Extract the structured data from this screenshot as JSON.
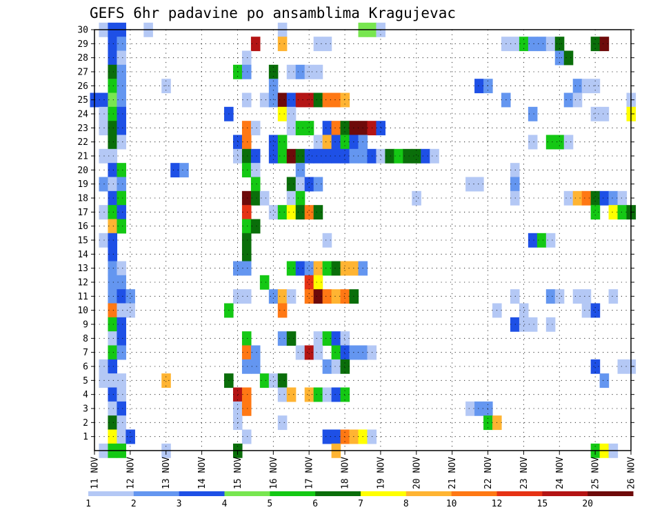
{
  "chart_data": {
    "type": "heatmap",
    "title": "GEFS 6hr padavine po ansamblima Kragujevac",
    "xlabel": "",
    "ylabel": "",
    "x_tick_labels": [
      "11 NOV",
      "12 NOV",
      "13 NOV",
      "14 NOV",
      "15 NOV",
      "16 NOV",
      "17 NOV",
      "18 NOV",
      "19 NOV",
      "20 NOV",
      "21 NOV",
      "22 NOV",
      "23 NOV",
      "24 NOV",
      "25 NOV",
      "26 NOV"
    ],
    "x_range_days": [
      11,
      26
    ],
    "y_tick_labels": [
      "1",
      "2",
      "3",
      "4",
      "5",
      "6",
      "7",
      "8",
      "9",
      "10",
      "11",
      "12",
      "13",
      "14",
      "15",
      "16",
      "17",
      "18",
      "19",
      "20",
      "21",
      "22",
      "23",
      "24",
      "25",
      "26",
      "27",
      "28",
      "29",
      "30"
    ],
    "y_range": [
      0,
      30
    ],
    "grid": true,
    "legend_position": "bottom",
    "legend": {
      "levels": [
        "1",
        "2",
        "3",
        "4",
        "5",
        "6",
        "7",
        "8",
        "10",
        "12",
        "15",
        "20"
      ],
      "colors": [
        "#b4c8f5",
        "#6496f0",
        "#1e50e6",
        "#78e650",
        "#14c814",
        "#0a6e0a",
        "#ffff00",
        "#ffb432",
        "#ff7814",
        "#e63214",
        "#b41414",
        "#6e0a0a"
      ]
    },
    "cells": [
      [
        11.25,
        30,
        1
      ],
      [
        11.5,
        30,
        3
      ],
      [
        11.75,
        30,
        3
      ],
      [
        12.5,
        30,
        1
      ],
      [
        16.25,
        30,
        1
      ],
      [
        18.5,
        30,
        4
      ],
      [
        18.75,
        30,
        4
      ],
      [
        19,
        30,
        1
      ],
      [
        11.5,
        29,
        3
      ],
      [
        11.75,
        29,
        2
      ],
      [
        15.5,
        29,
        15
      ],
      [
        16.25,
        29,
        8
      ],
      [
        17.25,
        29,
        1
      ],
      [
        17.5,
        29,
        1
      ],
      [
        22.5,
        29,
        1
      ],
      [
        22.75,
        29,
        1
      ],
      [
        23,
        29,
        5
      ],
      [
        23.25,
        29,
        2
      ],
      [
        23.5,
        29,
        2
      ],
      [
        23.75,
        29,
        1
      ],
      [
        24,
        29,
        6
      ],
      [
        25,
        29,
        6
      ],
      [
        25.25,
        29,
        20
      ],
      [
        11.5,
        28,
        3
      ],
      [
        11.75,
        28,
        1
      ],
      [
        15.25,
        28,
        1
      ],
      [
        24,
        28,
        2
      ],
      [
        24.25,
        28,
        6
      ],
      [
        11.5,
        27,
        6
      ],
      [
        11.75,
        27,
        2
      ],
      [
        15,
        27,
        5
      ],
      [
        15.25,
        27,
        2
      ],
      [
        16,
        27,
        6
      ],
      [
        16.5,
        27,
        1
      ],
      [
        16.75,
        27,
        2
      ],
      [
        17,
        27,
        1
      ],
      [
        17.25,
        27,
        1
      ],
      [
        11.5,
        26,
        5
      ],
      [
        11.75,
        26,
        2
      ],
      [
        13,
        26,
        1
      ],
      [
        16,
        26,
        2
      ],
      [
        21.75,
        26,
        3
      ],
      [
        22,
        26,
        2
      ],
      [
        24.5,
        26,
        2
      ],
      [
        24.75,
        26,
        1
      ],
      [
        25,
        26,
        1
      ],
      [
        11,
        25,
        3
      ],
      [
        11.25,
        25,
        3
      ],
      [
        11.5,
        25,
        4
      ],
      [
        11.75,
        25,
        2
      ],
      [
        15.25,
        25,
        1
      ],
      [
        15.75,
        25,
        1
      ],
      [
        16,
        25,
        2
      ],
      [
        16.25,
        25,
        20
      ],
      [
        16.5,
        25,
        3
      ],
      [
        16.75,
        25,
        15
      ],
      [
        17,
        25,
        15
      ],
      [
        17.25,
        25,
        6
      ],
      [
        17.5,
        25,
        10
      ],
      [
        17.75,
        25,
        10
      ],
      [
        18,
        25,
        8
      ],
      [
        22.5,
        25,
        2
      ],
      [
        24.25,
        25,
        2
      ],
      [
        24.5,
        25,
        1
      ],
      [
        26,
        25,
        1
      ],
      [
        11.25,
        24,
        1
      ],
      [
        11.5,
        24,
        5
      ],
      [
        11.75,
        24,
        3
      ],
      [
        14.75,
        24,
        3
      ],
      [
        16.25,
        24,
        7
      ],
      [
        16.5,
        24,
        1
      ],
      [
        23.25,
        24,
        2
      ],
      [
        25,
        24,
        1
      ],
      [
        25.25,
        24,
        1
      ],
      [
        26,
        24,
        7
      ],
      [
        11.25,
        23,
        1
      ],
      [
        11.5,
        23,
        6
      ],
      [
        11.75,
        23,
        3
      ],
      [
        15.25,
        23,
        10
      ],
      [
        15.5,
        23,
        1
      ],
      [
        16.5,
        23,
        1
      ],
      [
        16.75,
        23,
        5
      ],
      [
        17,
        23,
        5
      ],
      [
        17.5,
        23,
        3
      ],
      [
        17.75,
        23,
        10
      ],
      [
        18,
        23,
        6
      ],
      [
        18.25,
        23,
        20
      ],
      [
        18.5,
        23,
        20
      ],
      [
        18.75,
        23,
        15
      ],
      [
        19,
        23,
        3
      ],
      [
        11.5,
        22,
        6
      ],
      [
        11.75,
        22,
        1
      ],
      [
        15,
        22,
        3
      ],
      [
        15.25,
        22,
        10
      ],
      [
        16,
        22,
        3
      ],
      [
        16.25,
        22,
        5
      ],
      [
        17.25,
        22,
        1
      ],
      [
        17.5,
        22,
        8
      ],
      [
        17.75,
        22,
        3
      ],
      [
        18,
        22,
        5
      ],
      [
        18.25,
        22,
        3
      ],
      [
        18.5,
        22,
        2
      ],
      [
        23.25,
        22,
        1
      ],
      [
        23.75,
        22,
        5
      ],
      [
        24,
        22,
        5
      ],
      [
        24.25,
        22,
        1
      ],
      [
        11.25,
        21,
        1
      ],
      [
        11.5,
        21,
        1
      ],
      [
        15,
        21,
        1
      ],
      [
        15.25,
        21,
        6
      ],
      [
        15.5,
        21,
        3
      ],
      [
        16,
        21,
        3
      ],
      [
        16.25,
        21,
        5
      ],
      [
        16.5,
        21,
        20
      ],
      [
        16.75,
        21,
        6
      ],
      [
        17,
        21,
        3
      ],
      [
        17.25,
        21,
        3
      ],
      [
        17.5,
        21,
        3
      ],
      [
        17.75,
        21,
        3
      ],
      [
        18,
        21,
        3
      ],
      [
        18.25,
        21,
        2
      ],
      [
        18.5,
        21,
        2
      ],
      [
        18.75,
        21,
        3
      ],
      [
        19,
        21,
        1
      ],
      [
        19.25,
        21,
        6
      ],
      [
        19.5,
        21,
        5
      ],
      [
        19.75,
        21,
        6
      ],
      [
        20,
        21,
        6
      ],
      [
        20.25,
        21,
        3
      ],
      [
        20.5,
        21,
        1
      ],
      [
        11.5,
        20,
        3
      ],
      [
        11.75,
        20,
        5
      ],
      [
        13.25,
        20,
        3
      ],
      [
        13.5,
        20,
        2
      ],
      [
        15.25,
        20,
        5
      ],
      [
        15.5,
        20,
        1
      ],
      [
        16.75,
        20,
        2
      ],
      [
        22.75,
        20,
        1
      ],
      [
        11.25,
        19,
        2
      ],
      [
        11.5,
        19,
        1
      ],
      [
        11.75,
        19,
        2
      ],
      [
        15.5,
        19,
        5
      ],
      [
        16.5,
        19,
        6
      ],
      [
        16.75,
        19,
        1
      ],
      [
        17,
        19,
        3
      ],
      [
        17.25,
        19,
        2
      ],
      [
        21.5,
        19,
        1
      ],
      [
        21.75,
        19,
        1
      ],
      [
        22.75,
        19,
        2
      ],
      [
        11.5,
        18,
        3
      ],
      [
        11.75,
        18,
        5
      ],
      [
        15.25,
        18,
        20
      ],
      [
        15.5,
        18,
        6
      ],
      [
        15.75,
        18,
        1
      ],
      [
        16.5,
        18,
        1
      ],
      [
        16.75,
        18,
        5
      ],
      [
        20,
        18,
        1
      ],
      [
        22.75,
        18,
        1
      ],
      [
        24.25,
        18,
        1
      ],
      [
        24.5,
        18,
        8
      ],
      [
        24.75,
        18,
        10
      ],
      [
        25,
        18,
        6
      ],
      [
        25.25,
        18,
        3
      ],
      [
        25.5,
        18,
        2
      ],
      [
        25.75,
        18,
        1
      ],
      [
        11.25,
        17,
        1
      ],
      [
        11.5,
        17,
        5
      ],
      [
        11.75,
        17,
        3
      ],
      [
        15.25,
        17,
        12
      ],
      [
        16,
        17,
        1
      ],
      [
        16.25,
        17,
        5
      ],
      [
        16.5,
        17,
        7
      ],
      [
        16.75,
        17,
        6
      ],
      [
        17,
        17,
        10
      ],
      [
        17.25,
        17,
        6
      ],
      [
        25,
        17,
        5
      ],
      [
        25.5,
        17,
        7
      ],
      [
        25.75,
        17,
        5
      ],
      [
        26,
        17,
        6
      ],
      [
        11.5,
        16,
        8
      ],
      [
        11.75,
        16,
        5
      ],
      [
        15.25,
        16,
        5
      ],
      [
        15.5,
        16,
        6
      ],
      [
        11.25,
        15,
        1
      ],
      [
        11.5,
        15,
        3
      ],
      [
        15.25,
        15,
        6
      ],
      [
        17.5,
        15,
        1
      ],
      [
        23.25,
        15,
        3
      ],
      [
        23.5,
        15,
        5
      ],
      [
        23.75,
        15,
        1
      ],
      [
        11.5,
        14,
        3
      ],
      [
        15.25,
        14,
        6
      ],
      [
        11.5,
        13,
        2
      ],
      [
        11.75,
        13,
        1
      ],
      [
        15,
        13,
        2
      ],
      [
        15.25,
        13,
        2
      ],
      [
        16.5,
        13,
        5
      ],
      [
        16.75,
        13,
        3
      ],
      [
        17,
        13,
        2
      ],
      [
        17.25,
        13,
        8
      ],
      [
        17.5,
        13,
        5
      ],
      [
        17.75,
        13,
        6
      ],
      [
        18,
        13,
        8
      ],
      [
        18.25,
        13,
        8
      ],
      [
        18.5,
        13,
        2
      ],
      [
        11.5,
        12,
        2
      ],
      [
        11.75,
        12,
        2
      ],
      [
        15.75,
        12,
        5
      ],
      [
        17,
        12,
        12
      ],
      [
        17.25,
        12,
        7
      ],
      [
        11.5,
        11,
        2
      ],
      [
        11.75,
        11,
        3
      ],
      [
        12,
        11,
        2
      ],
      [
        15,
        11,
        1
      ],
      [
        15.25,
        11,
        1
      ],
      [
        16,
        11,
        2
      ],
      [
        16.25,
        11,
        8
      ],
      [
        16.5,
        11,
        1
      ],
      [
        17,
        11,
        10
      ],
      [
        17.25,
        11,
        20
      ],
      [
        17.5,
        11,
        10
      ],
      [
        17.75,
        11,
        8
      ],
      [
        18,
        11,
        10
      ],
      [
        18.25,
        11,
        6
      ],
      [
        22.75,
        11,
        1
      ],
      [
        23.75,
        11,
        2
      ],
      [
        24,
        11,
        1
      ],
      [
        24.5,
        11,
        1
      ],
      [
        24.75,
        11,
        1
      ],
      [
        25.5,
        11,
        1
      ],
      [
        11.5,
        10,
        10
      ],
      [
        11.75,
        10,
        1
      ],
      [
        12,
        10,
        1
      ],
      [
        14.75,
        10,
        5
      ],
      [
        16.25,
        10,
        10
      ],
      [
        22.25,
        10,
        1
      ],
      [
        23,
        10,
        1
      ],
      [
        24.75,
        10,
        1
      ],
      [
        25,
        10,
        3
      ],
      [
        11.5,
        9,
        5
      ],
      [
        11.75,
        9,
        3
      ],
      [
        22.75,
        9,
        3
      ],
      [
        23,
        9,
        1
      ],
      [
        23.25,
        9,
        1
      ],
      [
        23.75,
        9,
        1
      ],
      [
        11.5,
        8,
        1
      ],
      [
        11.75,
        8,
        3
      ],
      [
        15.25,
        8,
        5
      ],
      [
        16.25,
        8,
        2
      ],
      [
        16.5,
        8,
        6
      ],
      [
        17.25,
        8,
        1
      ],
      [
        17.5,
        8,
        5
      ],
      [
        17.75,
        8,
        3
      ],
      [
        18,
        8,
        1
      ],
      [
        11.5,
        7,
        5
      ],
      [
        11.75,
        7,
        2
      ],
      [
        15.25,
        7,
        10
      ],
      [
        15.5,
        7,
        2
      ],
      [
        16.75,
        7,
        1
      ],
      [
        17,
        7,
        15
      ],
      [
        17.25,
        7,
        1
      ],
      [
        17.75,
        7,
        5
      ],
      [
        18,
        7,
        3
      ],
      [
        18.25,
        7,
        2
      ],
      [
        18.5,
        7,
        2
      ],
      [
        18.75,
        7,
        1
      ],
      [
        11.25,
        6,
        1
      ],
      [
        11.5,
        6,
        3
      ],
      [
        15.25,
        6,
        2
      ],
      [
        15.5,
        6,
        2
      ],
      [
        17.5,
        6,
        2
      ],
      [
        17.75,
        6,
        1
      ],
      [
        18,
        6,
        6
      ],
      [
        25,
        6,
        3
      ],
      [
        25.75,
        6,
        1
      ],
      [
        26,
        6,
        1
      ],
      [
        11.25,
        5,
        1
      ],
      [
        11.5,
        5,
        1
      ],
      [
        11.75,
        5,
        1
      ],
      [
        13,
        5,
        8
      ],
      [
        14.75,
        5,
        6
      ],
      [
        15.75,
        5,
        5
      ],
      [
        16,
        5,
        1
      ],
      [
        16.25,
        5,
        6
      ],
      [
        25.25,
        5,
        2
      ],
      [
        11.5,
        4,
        3
      ],
      [
        11.75,
        4,
        1
      ],
      [
        15,
        4,
        15
      ],
      [
        15.25,
        4,
        10
      ],
      [
        16.25,
        4,
        1
      ],
      [
        16.5,
        4,
        8
      ],
      [
        17,
        4,
        8
      ],
      [
        17.25,
        4,
        5
      ],
      [
        17.5,
        4,
        1
      ],
      [
        17.75,
        4,
        3
      ],
      [
        18,
        4,
        5
      ],
      [
        11.5,
        3,
        1
      ],
      [
        11.75,
        3,
        3
      ],
      [
        15,
        3,
        1
      ],
      [
        15.25,
        3,
        10
      ],
      [
        21.5,
        3,
        1
      ],
      [
        21.75,
        3,
        2
      ],
      [
        22,
        3,
        2
      ],
      [
        11.5,
        2,
        6
      ],
      [
        11.75,
        2,
        1
      ],
      [
        15,
        2,
        1
      ],
      [
        16.25,
        2,
        1
      ],
      [
        22,
        2,
        5
      ],
      [
        22.25,
        2,
        8
      ],
      [
        11.5,
        1,
        7
      ],
      [
        11.75,
        1,
        1
      ],
      [
        12,
        1,
        3
      ],
      [
        15.25,
        1,
        1
      ],
      [
        17.5,
        1,
        3
      ],
      [
        17.75,
        1,
        3
      ],
      [
        18,
        1,
        10
      ],
      [
        18.25,
        1,
        8
      ],
      [
        18.5,
        1,
        7
      ],
      [
        18.75,
        1,
        1
      ],
      [
        11.25,
        0,
        1
      ],
      [
        11.5,
        0,
        5
      ],
      [
        11.75,
        0,
        5
      ],
      [
        13,
        0,
        1
      ],
      [
        15,
        0,
        6
      ],
      [
        17.75,
        0,
        8
      ],
      [
        25,
        0,
        5
      ],
      [
        25.25,
        0,
        7
      ],
      [
        25.5,
        0,
        1
      ]
    ]
  }
}
